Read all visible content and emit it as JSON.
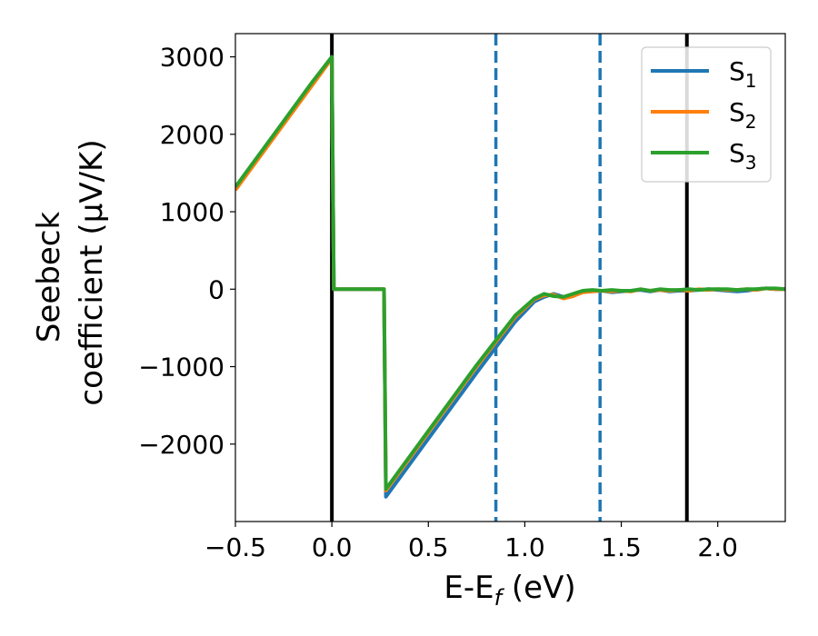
{
  "chart_data": {
    "type": "line",
    "xlabel": "E-E",
    "xlabel_sub": "f",
    "xlabel_unit": " (eV)",
    "ylabel_line1": "Seebeck",
    "ylabel_line2": "coefficient  (μV/K)",
    "xlim": [
      -0.5,
      2.35
    ],
    "ylim": [
      -3000,
      3300
    ],
    "xticks": [
      -0.5,
      0.0,
      0.5,
      1.0,
      1.5,
      2.0
    ],
    "xtick_labels": [
      "−0.5",
      "0.0",
      "0.5",
      "1.0",
      "1.5",
      "2.0"
    ],
    "yticks": [
      -2000,
      -1000,
      0,
      1000,
      2000,
      3000
    ],
    "ytick_labels": [
      "−2000",
      "−1000",
      "0",
      "1000",
      "2000",
      "3000"
    ],
    "grid": false,
    "legend_position": "top-right",
    "vlines": [
      {
        "x": 0.0,
        "color": "#000000",
        "style": "solid"
      },
      {
        "x": 1.84,
        "color": "#000000",
        "style": "solid"
      },
      {
        "x": 0.85,
        "color": "#1f77b4",
        "style": "dashed"
      },
      {
        "x": 1.39,
        "color": "#1f77b4",
        "style": "dashed"
      }
    ],
    "series": [
      {
        "name": "S",
        "name_sub": "1",
        "color": "#1f77b4",
        "x": [
          -0.5,
          -0.3,
          -0.1,
          0.0,
          0.01,
          0.15,
          0.27,
          0.28,
          0.5,
          0.75,
          0.95,
          1.05,
          1.1,
          1.15,
          1.2,
          1.25,
          1.3,
          1.35,
          1.4,
          1.45,
          1.5,
          1.55,
          1.6,
          1.65,
          1.7,
          1.75,
          1.8,
          1.85,
          1.9,
          1.95,
          2.0,
          2.05,
          2.1,
          2.15,
          2.2,
          2.25,
          2.3,
          2.35
        ],
        "y": [
          1300,
          1980,
          2660,
          3000,
          0,
          0,
          0,
          -2680,
          -1930,
          -1080,
          -420,
          -160,
          -100,
          -60,
          -100,
          -80,
          -40,
          -20,
          -20,
          -40,
          -30,
          -20,
          -10,
          -30,
          -10,
          -30,
          -20,
          -20,
          -10,
          0,
          -10,
          -20,
          -30,
          -20,
          0,
          10,
          0,
          0
        ]
      },
      {
        "name": "S",
        "name_sub": "2",
        "color": "#ff7f0e",
        "x": [
          -0.5,
          -0.3,
          -0.1,
          0.0,
          0.01,
          0.15,
          0.27,
          0.28,
          0.5,
          0.75,
          0.95,
          1.05,
          1.1,
          1.15,
          1.2,
          1.25,
          1.3,
          1.35,
          1.4,
          1.45,
          1.5,
          1.55,
          1.6,
          1.65,
          1.7,
          1.75,
          1.8,
          1.85,
          1.9,
          1.95,
          2.0,
          2.05,
          2.1,
          2.15,
          2.2,
          2.25,
          2.3,
          2.35
        ],
        "y": [
          1280,
          1960,
          2640,
          2980,
          0,
          0,
          0,
          -2600,
          -1850,
          -1000,
          -360,
          -130,
          -80,
          -70,
          -120,
          -90,
          -40,
          -30,
          -20,
          -30,
          -20,
          -30,
          0,
          -20,
          -10,
          -20,
          -10,
          -20,
          0,
          -10,
          0,
          -10,
          -10,
          0,
          -10,
          10,
          0,
          0
        ]
      },
      {
        "name": "S",
        "name_sub": "3",
        "color": "#2ca02c",
        "x": [
          -0.5,
          -0.3,
          -0.1,
          0.0,
          0.01,
          0.15,
          0.27,
          0.28,
          0.5,
          0.75,
          0.95,
          1.05,
          1.1,
          1.15,
          1.2,
          1.25,
          1.3,
          1.35,
          1.4,
          1.45,
          1.5,
          1.55,
          1.6,
          1.65,
          1.7,
          1.75,
          1.8,
          1.85,
          1.9,
          1.95,
          2.0,
          2.05,
          2.1,
          2.15,
          2.2,
          2.25,
          2.3,
          2.35
        ],
        "y": [
          1320,
          2000,
          2680,
          3000,
          0,
          0,
          0,
          -2580,
          -1830,
          -980,
          -340,
          -120,
          -60,
          -90,
          -100,
          -60,
          -20,
          -10,
          -20,
          -10,
          -20,
          -20,
          0,
          -20,
          0,
          -10,
          -10,
          0,
          -10,
          0,
          0,
          0,
          -10,
          0,
          0,
          10,
          10,
          0
        ]
      }
    ]
  }
}
